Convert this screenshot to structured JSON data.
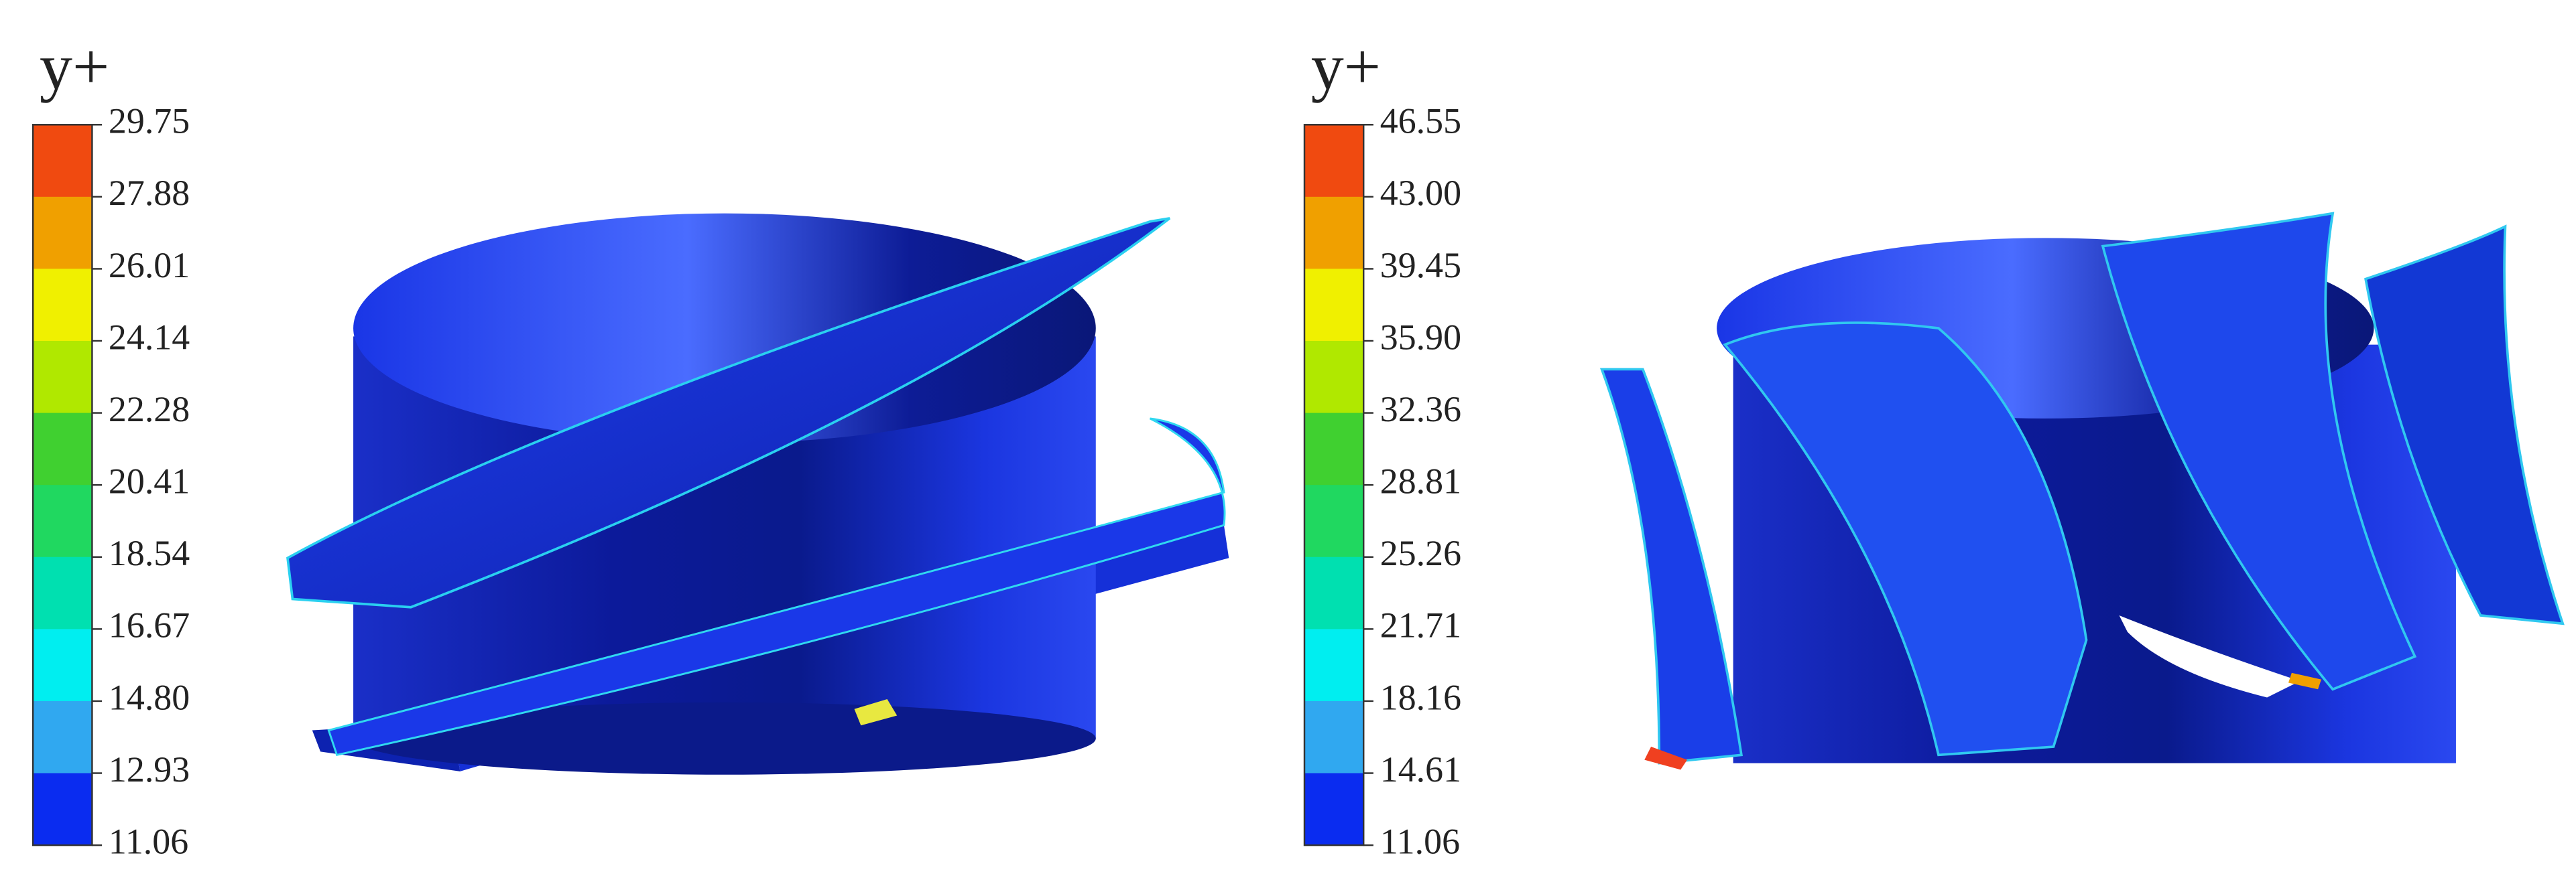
{
  "panels": [
    {
      "legend_title": "y+",
      "labels": [
        "29.75",
        "27.88",
        "26.01",
        "24.14",
        "22.28",
        "20.41",
        "18.54",
        "16.67",
        "14.80",
        "12.93",
        "11.06"
      ]
    },
    {
      "legend_title": "y+",
      "labels": [
        "46.55",
        "43.00",
        "39.45",
        "35.90",
        "32.36",
        "28.81",
        "25.26",
        "21.71",
        "18.16",
        "14.61",
        "11.06"
      ]
    }
  ]
}
